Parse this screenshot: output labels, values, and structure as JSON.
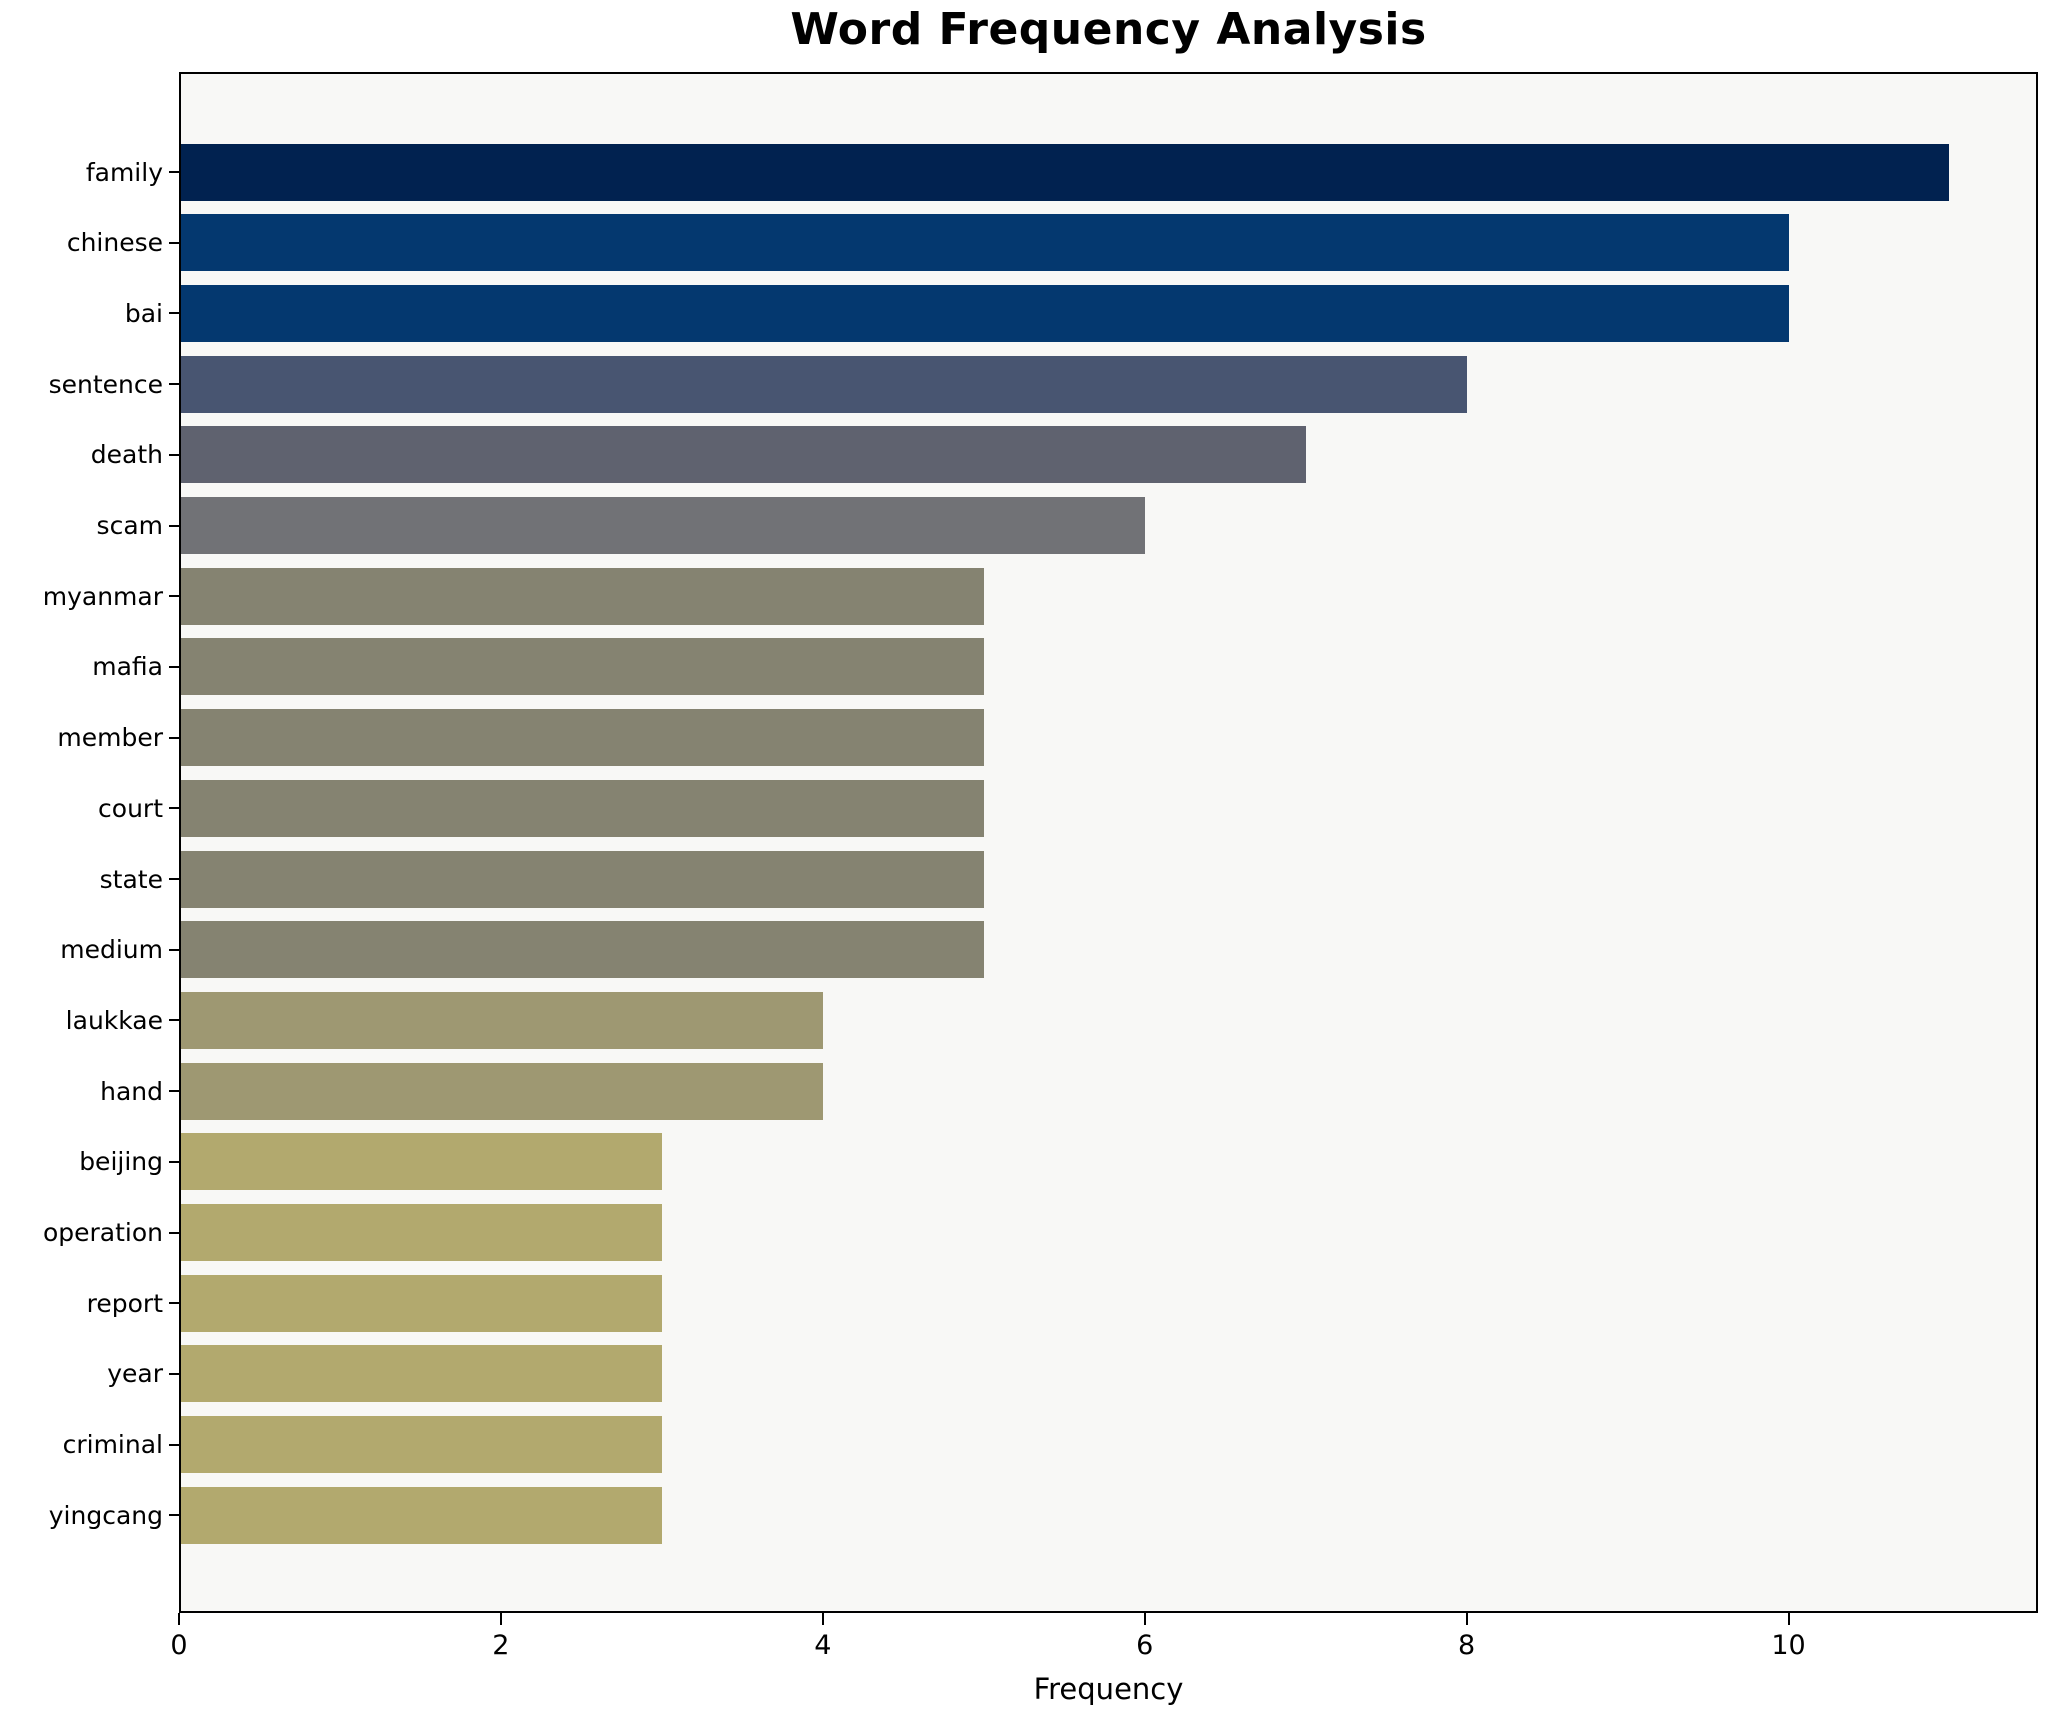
{
  "page": {
    "title": "Word Frequency Analysis"
  },
  "chart_data": {
    "type": "bar",
    "orientation": "horizontal",
    "title": "Word Frequency Analysis",
    "xlabel": "Frequency",
    "ylabel": "",
    "categories": [
      "family",
      "chinese",
      "bai",
      "sentence",
      "death",
      "scam",
      "myanmar",
      "mafia",
      "member",
      "court",
      "state",
      "medium",
      "laukkae",
      "hand",
      "beijing",
      "operation",
      "report",
      "year",
      "criminal",
      "yingcang"
    ],
    "values": [
      11,
      10,
      10,
      8,
      7,
      6,
      5,
      5,
      5,
      5,
      5,
      5,
      4,
      4,
      3,
      3,
      3,
      3,
      3,
      3
    ],
    "bar_colors": [
      "#012250",
      "#04386f",
      "#04386f",
      "#485571",
      "#5f626f",
      "#717276",
      "#858371",
      "#858371",
      "#858371",
      "#858371",
      "#858371",
      "#858371",
      "#9e9872",
      "#9e9872",
      "#b2a96e",
      "#b2a96e",
      "#b2a96e",
      "#b2a96e",
      "#b2a96e",
      "#b2a96e"
    ],
    "xlim": [
      0,
      11.55
    ],
    "xticks": [
      0,
      2,
      4,
      6,
      8,
      10
    ],
    "grid": false,
    "legend": null,
    "plot_bg": "#f8f8f6",
    "figure_bg": "#ffffff",
    "bar_gap_color": "#f8f8f6"
  }
}
